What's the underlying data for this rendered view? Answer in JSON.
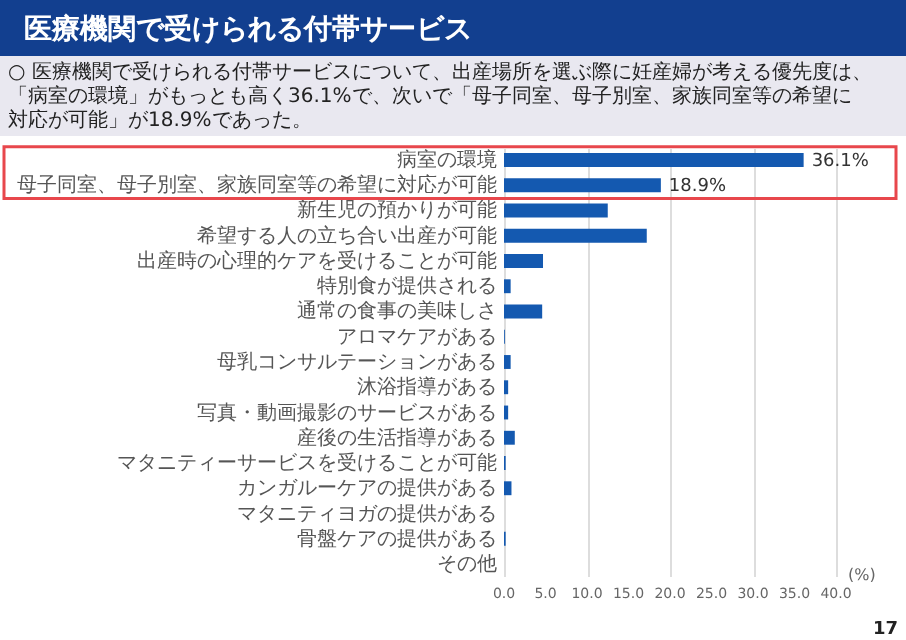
{
  "chart_data": {
    "type": "bar",
    "orientation": "horizontal",
    "title": "医療機関で受けられる付帯サービス",
    "subtitle": "○ 医療機関で受けられる付帯サービスについて、出産場所を選ぶ際に妊産婦が考える優先度は、「病室の環境」がもっとも高く36.1%で、次いで「母子同室、母子別室、家族同室等の希望に対応が可能」が18.9%であった。",
    "xlabel": "(%)",
    "annotations": [
      "17"
    ],
    "categories": [
      "病室の環境",
      "母子同室、母子別室、家族同室等の希望に対応が可能",
      "新生児の預かりが可能",
      "希望する人の立ち合い出産が可能",
      "出産時の心理的ケアを受けることが可能",
      "特別食が提供される",
      "通常の食事の美味しさ",
      "アロマケアがある",
      "母乳コンサルテーションがある",
      "沐浴指導がある",
      "写真・動画撮影のサービスがある",
      "産後の生活指導がある",
      "マタニティーサービスを受けることが可能",
      "カンガルーケアの提供がある",
      "マタニティヨガの提供がある",
      "骨盤ケアの提供がある",
      "その他"
    ],
    "values": [
      36.1,
      18.9,
      12.5,
      17.2,
      4.7,
      0.8,
      4.6,
      0.1,
      0.8,
      0.5,
      0.5,
      1.3,
      0.2,
      0.9,
      0,
      0.2,
      0
    ],
    "value_labels": [
      "36.1%",
      "18.9%",
      null,
      null,
      null,
      null,
      null,
      null,
      null,
      null,
      null,
      null,
      null,
      null,
      null,
      null,
      null
    ],
    "color": "#1459b0",
    "xlim": [
      0,
      40
    ],
    "xticks": [
      {
        "value": 0,
        "label": "0.0"
      },
      {
        "value": 5,
        "label": "5.0"
      },
      {
        "value": 10,
        "label": "10.0"
      },
      {
        "value": 15,
        "label": "15.0"
      },
      {
        "value": 20,
        "label": "20.0"
      },
      {
        "value": 25,
        "label": "25.0"
      },
      {
        "value": 30,
        "label": "30.0"
      },
      {
        "value": 35,
        "label": "35.0"
      },
      {
        "value": 40,
        "label": "40.0"
      }
    ],
    "grid": "x"
  }
}
